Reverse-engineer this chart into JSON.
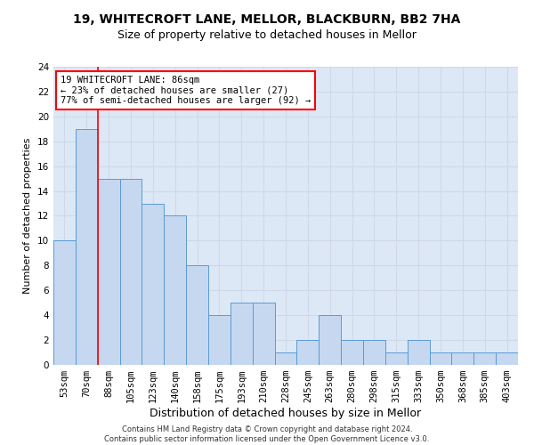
{
  "title1": "19, WHITECROFT LANE, MELLOR, BLACKBURN, BB2 7HA",
  "title2": "Size of property relative to detached houses in Mellor",
  "xlabel": "Distribution of detached houses by size in Mellor",
  "ylabel": "Number of detached properties",
  "footnote": "Contains HM Land Registry data © Crown copyright and database right 2024.\nContains public sector information licensed under the Open Government Licence v3.0.",
  "categories": [
    "53sqm",
    "70sqm",
    "88sqm",
    "105sqm",
    "123sqm",
    "140sqm",
    "158sqm",
    "175sqm",
    "193sqm",
    "210sqm",
    "228sqm",
    "245sqm",
    "263sqm",
    "280sqm",
    "298sqm",
    "315sqm",
    "333sqm",
    "350sqm",
    "368sqm",
    "385sqm",
    "403sqm"
  ],
  "values": [
    10,
    19,
    15,
    15,
    13,
    12,
    8,
    4,
    5,
    5,
    1,
    2,
    4,
    2,
    2,
    1,
    2,
    1,
    1,
    1,
    1
  ],
  "bar_color": "#c5d8f0",
  "bar_edge_color": "#5b9bd5",
  "grid_color": "#d0d8e8",
  "background_color": "#dce8f5",
  "annotation_box_text": "19 WHITECROFT LANE: 86sqm\n← 23% of detached houses are smaller (27)\n77% of semi-detached houses are larger (92) →",
  "annotation_box_color": "white",
  "annotation_box_edge": "red",
  "red_line_index": 1.5,
  "ylim": [
    0,
    24
  ],
  "yticks": [
    0,
    2,
    4,
    6,
    8,
    10,
    12,
    14,
    16,
    18,
    20,
    22,
    24
  ],
  "title1_fontsize": 10,
  "title2_fontsize": 9,
  "xlabel_fontsize": 9,
  "ylabel_fontsize": 8,
  "tick_fontsize": 7.5,
  "annotation_fontsize": 7.5,
  "footnote_fontsize": 6
}
